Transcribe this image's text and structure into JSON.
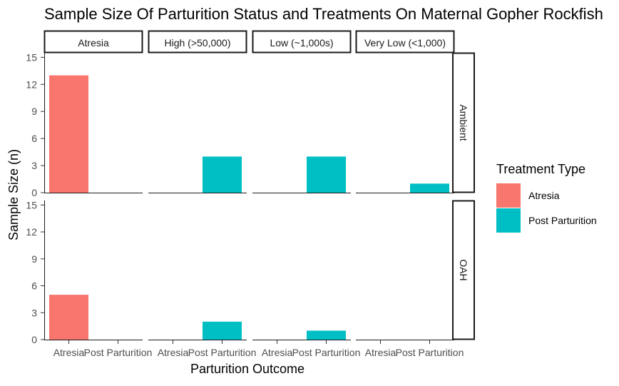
{
  "chart_data": {
    "type": "bar",
    "title": "Sample Size Of Parturition Status and Treatments On Maternal Gopher Rockfish",
    "xlabel": "Parturition Outcome",
    "ylabel": "Sample Size (n)",
    "ylim": [
      0,
      15.5
    ],
    "yticks": [
      0,
      3,
      6,
      9,
      12,
      15
    ],
    "categories": [
      "Atresia",
      "Post Parturition"
    ],
    "col_facets": [
      "Atresia",
      "High (>50,000)",
      "Low (~1,000s)",
      "Very Low (<1,000)"
    ],
    "row_facets": [
      "Ambient",
      "OAH"
    ],
    "legend": {
      "title": "Treatment Type",
      "position": "right",
      "entries": [
        {
          "name": "Atresia",
          "color": "#F8766D"
        },
        {
          "name": "Post Parturition",
          "color": "#00BFC4"
        }
      ]
    },
    "grid": false,
    "panels": [
      {
        "row": "Ambient",
        "col": "Atresia",
        "values": [
          13,
          0
        ]
      },
      {
        "row": "Ambient",
        "col": "High (>50,000)",
        "values": [
          0,
          4
        ]
      },
      {
        "row": "Ambient",
        "col": "Low (~1,000s)",
        "values": [
          0,
          4
        ]
      },
      {
        "row": "Ambient",
        "col": "Very Low (<1,000)",
        "values": [
          0,
          1
        ]
      },
      {
        "row": "OAH",
        "col": "Atresia",
        "values": [
          5,
          0
        ]
      },
      {
        "row": "OAH",
        "col": "High (>50,000)",
        "values": [
          0,
          2
        ]
      },
      {
        "row": "OAH",
        "col": "Low (~1,000s)",
        "values": [
          0,
          1
        ]
      },
      {
        "row": "OAH",
        "col": "Very Low (<1,000)",
        "values": [
          0,
          0
        ]
      }
    ]
  }
}
